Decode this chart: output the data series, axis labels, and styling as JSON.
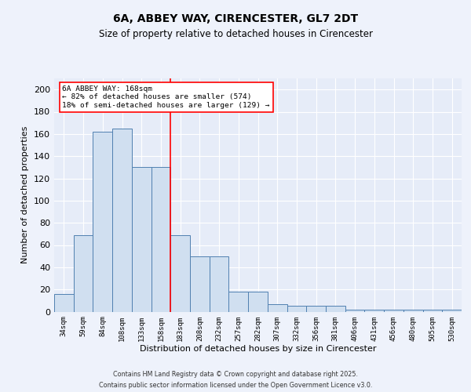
{
  "title": "6A, ABBEY WAY, CIRENCESTER, GL7 2DT",
  "subtitle": "Size of property relative to detached houses in Cirencester",
  "xlabel": "Distribution of detached houses by size in Cirencester",
  "ylabel": "Number of detached properties",
  "categories": [
    "34sqm",
    "59sqm",
    "84sqm",
    "108sqm",
    "133sqm",
    "158sqm",
    "183sqm",
    "208sqm",
    "232sqm",
    "257sqm",
    "282sqm",
    "307sqm",
    "332sqm",
    "356sqm",
    "381sqm",
    "406sqm",
    "431sqm",
    "456sqm",
    "480sqm",
    "505sqm",
    "530sqm"
  ],
  "values": [
    16,
    69,
    162,
    165,
    130,
    130,
    69,
    50,
    50,
    18,
    18,
    7,
    5,
    5,
    5,
    2,
    2,
    2,
    2,
    2,
    2
  ],
  "bar_color": "#d0dff0",
  "bar_edge_color": "#5080b0",
  "red_line_x": 6.0,
  "annotation_text": "6A ABBEY WAY: 168sqm\n← 82% of detached houses are smaller (574)\n18% of semi-detached houses are larger (129) →",
  "annotation_box_color": "white",
  "annotation_box_edge": "red",
  "ylim": [
    0,
    210
  ],
  "yticks": [
    0,
    20,
    40,
    60,
    80,
    100,
    120,
    140,
    160,
    180,
    200
  ],
  "footer_line1": "Contains HM Land Registry data © Crown copyright and database right 2025.",
  "footer_line2": "Contains public sector information licensed under the Open Government Licence v3.0.",
  "title_fontsize": 10,
  "subtitle_fontsize": 8.5,
  "background_color": "#eef2fb",
  "plot_bg_color": "#e6ecf8"
}
